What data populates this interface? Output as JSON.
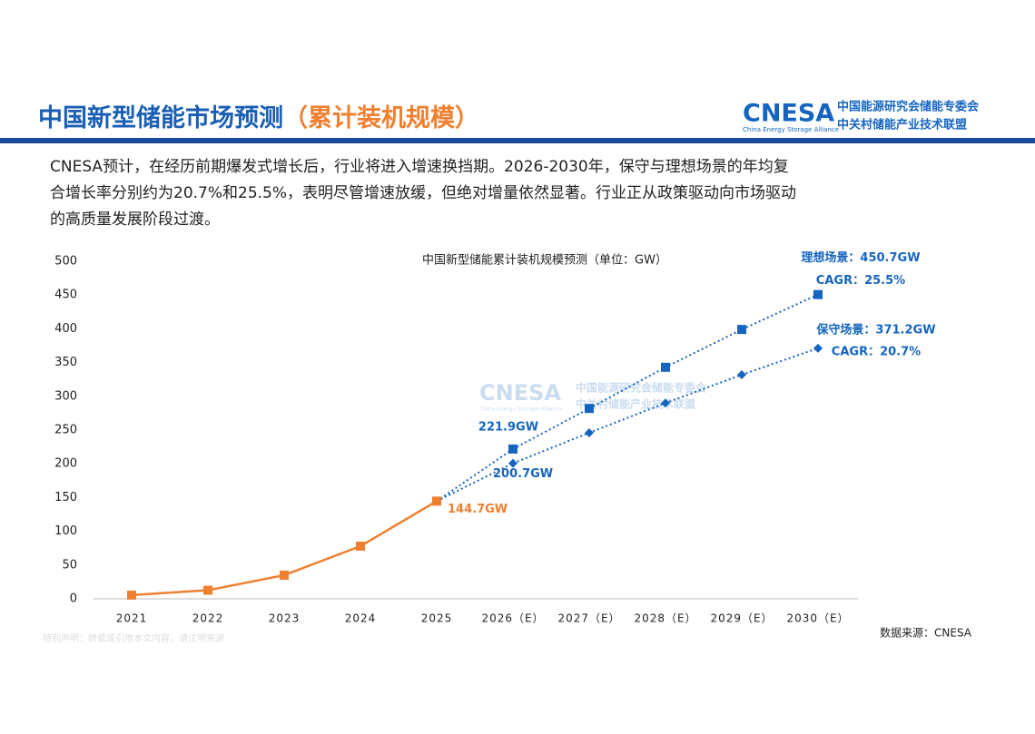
{
  "header": {
    "title": "中国新型储能市场预测",
    "title_suffix": "（累计装机规模）",
    "logo": {
      "brand": "CNESA",
      "tagline": "China Energy Storage Alliance",
      "org1": "中国能源研究会储能专委会",
      "org2": "中关村储能产业技术联盟"
    }
  },
  "paragraph": [
    "CNESA预计，在经历前期爆发式增长后，行业将进入增速换挡期。2026-2030年，保守与理想场景的年均复",
    "合增长率分别约为20.7%和25.5%，表明尽管增速放缓，但绝对增量依然显著。行业正从政策驱动向市场驱动",
    "的高质量发展阶段过渡。"
  ],
  "chart_data": {
    "type": "line",
    "title": "中国新型储能累计装机规模预测（单位：GW）",
    "categories": [
      "2021",
      "2022",
      "2023",
      "2024",
      "2025",
      "2026（E）",
      "2027（E）",
      "2028（E）",
      "2029（E）",
      "2030（E）"
    ],
    "series": [
      {
        "color": "#f08030",
        "marker": "square",
        "dash": false,
        "values": [
          5.5,
          12.7,
          35,
          78,
          144.7,
          null,
          null,
          null,
          null,
          null
        ],
        "value_labels": [
          null,
          null,
          null,
          null,
          "144.7GW",
          null,
          null,
          null,
          null,
          null
        ]
      },
      {
        "color": "#1565c0",
        "marker": "square",
        "dash": true,
        "values": [
          null,
          null,
          null,
          null,
          null,
          221.9,
          282,
          343,
          399,
          450.7
        ],
        "value_labels": [
          null,
          null,
          null,
          null,
          null,
          "221.9GW",
          null,
          null,
          null,
          "理想场景：450.7GW"
        ]
      },
      {
        "color": "#1565c0",
        "marker": "diamond",
        "dash": true,
        "values": [
          null,
          null,
          null,
          null,
          null,
          200.7,
          246,
          290,
          332,
          371.2
        ],
        "value_labels": [
          null,
          null,
          null,
          null,
          null,
          "200.7GW",
          null,
          null,
          null,
          "保守场景：371.2GW"
        ]
      }
    ],
    "annotations": [
      "CAGR：25.5%",
      "CAGR：20.7%"
    ],
    "ylim": [
      0,
      500
    ],
    "yticks": [
      0,
      50,
      100,
      150,
      200,
      250,
      300,
      350,
      400,
      450,
      500
    ],
    "grid": false
  },
  "source": "数据来源：CNESA",
  "watermark": {
    "brand": "CNESA",
    "tagline": "China Energy Storage Alliance",
    "org1": "中国能源研究会储能专委会",
    "org2": "中关村储能产业技术联盟"
  },
  "footer": "特别声明：转载或引用本文内容，请注明来源"
}
